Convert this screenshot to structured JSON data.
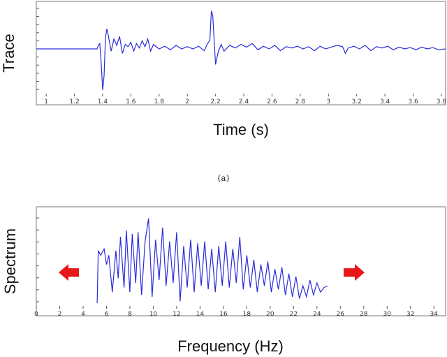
{
  "chart_data": [
    {
      "type": "line",
      "xlabel": "Time (s)",
      "ylabel": "Trace",
      "xlim": [
        0.93,
        3.83
      ],
      "ylim": [
        -1.0,
        1.0
      ],
      "x_ticks": [
        "1",
        "1.2",
        "1.4",
        "1.6",
        "1.8",
        "2",
        "2.2",
        "2.4",
        "2.6",
        "2.8",
        "3",
        "3.2",
        "3.4",
        "3.6",
        "3.8"
      ],
      "x_tick_values": [
        1,
        1.2,
        1.4,
        1.6,
        1.8,
        2,
        2.2,
        2.4,
        2.6,
        2.8,
        3,
        3.2,
        3.4,
        3.6,
        3.8
      ],
      "series_color": "#2b2bd9",
      "series": [
        {
          "x": [
            0.93,
            1.36,
            1.37,
            1.38,
            1.39,
            1.4,
            1.41,
            1.42,
            1.43,
            1.44,
            1.46,
            1.48,
            1.5,
            1.52,
            1.54,
            1.56,
            1.58,
            1.6,
            1.62,
            1.64,
            1.66,
            1.68,
            1.7,
            1.72,
            1.74,
            1.76,
            1.8,
            1.84,
            1.88,
            1.92,
            1.96,
            2.0,
            2.04,
            2.08,
            2.12,
            2.14,
            2.16,
            2.17,
            2.18,
            2.19,
            2.2,
            2.21,
            2.22,
            2.24,
            2.26,
            2.3,
            2.34,
            2.38,
            2.42,
            2.46,
            2.5,
            2.54,
            2.58,
            2.62,
            2.66,
            2.7,
            2.74,
            2.78,
            2.82,
            2.86,
            2.9,
            2.94,
            2.98,
            3.02,
            3.06,
            3.1,
            3.12,
            3.14,
            3.18,
            3.22,
            3.26,
            3.3,
            3.34,
            3.38,
            3.42,
            3.46,
            3.5,
            3.54,
            3.58,
            3.62,
            3.66,
            3.7,
            3.74,
            3.78,
            3.83
          ],
          "y": [
            0.0,
            0.0,
            0.08,
            0.12,
            -0.35,
            -0.92,
            -0.6,
            0.25,
            0.45,
            0.3,
            -0.05,
            0.22,
            0.08,
            0.28,
            -0.1,
            0.1,
            0.05,
            0.15,
            -0.05,
            0.12,
            0.02,
            0.18,
            0.05,
            0.22,
            -0.05,
            0.1,
            0.0,
            0.06,
            -0.02,
            0.08,
            0.0,
            0.05,
            0.0,
            0.06,
            -0.04,
            0.1,
            0.2,
            0.85,
            0.75,
            0.2,
            -0.35,
            -0.2,
            -0.05,
            0.1,
            -0.05,
            0.08,
            0.02,
            0.1,
            0.04,
            0.12,
            -0.02,
            0.06,
            0.0,
            0.08,
            -0.04,
            0.05,
            0.02,
            0.06,
            0.0,
            0.05,
            -0.04,
            0.06,
            0.0,
            0.04,
            0.08,
            0.05,
            -0.1,
            0.02,
            0.06,
            0.0,
            0.08,
            -0.04,
            0.05,
            0.02,
            0.06,
            -0.02,
            0.04,
            0.0,
            0.03,
            -0.02,
            0.04,
            0.0,
            0.03,
            -0.02,
            0.0
          ]
        }
      ]
    },
    {
      "type": "line",
      "xlabel": "Frequency (Hz)",
      "ylabel": "Spectrum",
      "xlim": [
        0,
        35
      ],
      "ylim": [
        0,
        1
      ],
      "x_ticks": [
        "0",
        "2",
        "4",
        "6",
        "8",
        "10",
        "12",
        "14",
        "16",
        "18",
        "20",
        "22",
        "24",
        "26",
        "28",
        "30",
        "32",
        "34"
      ],
      "x_tick_values": [
        0,
        2,
        4,
        6,
        8,
        10,
        12,
        14,
        16,
        18,
        20,
        22,
        24,
        26,
        28,
        30,
        32,
        34
      ],
      "series_color": "#2b2bd9",
      "arrows_color": "#e81818",
      "series": [
        {
          "x": [
            5.2,
            5.3,
            5.5,
            5.8,
            6.0,
            6.2,
            6.5,
            6.8,
            7.0,
            7.2,
            7.5,
            7.7,
            8.0,
            8.2,
            8.5,
            8.7,
            9.0,
            9.3,
            9.6,
            9.9,
            10.2,
            10.5,
            10.8,
            11.1,
            11.4,
            11.7,
            12.0,
            12.3,
            12.6,
            12.9,
            13.2,
            13.5,
            13.8,
            14.1,
            14.4,
            14.7,
            15.0,
            15.3,
            15.6,
            15.9,
            16.2,
            16.5,
            16.8,
            17.1,
            17.4,
            17.7,
            18.0,
            18.3,
            18.6,
            18.9,
            19.2,
            19.5,
            19.8,
            20.1,
            20.4,
            20.7,
            21.0,
            21.3,
            21.6,
            21.9,
            22.2,
            22.5,
            22.8,
            23.1,
            23.4,
            23.7,
            24.0,
            24.3,
            24.6,
            24.9
          ],
          "y": [
            0.03,
            0.6,
            0.55,
            0.62,
            0.45,
            0.55,
            0.15,
            0.6,
            0.3,
            0.75,
            0.2,
            0.82,
            0.15,
            0.78,
            0.25,
            0.8,
            0.12,
            0.7,
            0.95,
            0.1,
            0.72,
            0.28,
            0.85,
            0.22,
            0.7,
            0.25,
            0.8,
            0.05,
            0.65,
            0.2,
            0.72,
            0.15,
            0.68,
            0.22,
            0.7,
            0.18,
            0.62,
            0.15,
            0.65,
            0.22,
            0.7,
            0.2,
            0.62,
            0.25,
            0.75,
            0.18,
            0.55,
            0.2,
            0.5,
            0.15,
            0.45,
            0.22,
            0.48,
            0.15,
            0.4,
            0.18,
            0.42,
            0.12,
            0.35,
            0.1,
            0.32,
            0.08,
            0.22,
            0.1,
            0.28,
            0.12,
            0.25,
            0.15,
            0.2,
            0.22
          ]
        }
      ]
    }
  ],
  "captions": {
    "top": "(a)"
  }
}
